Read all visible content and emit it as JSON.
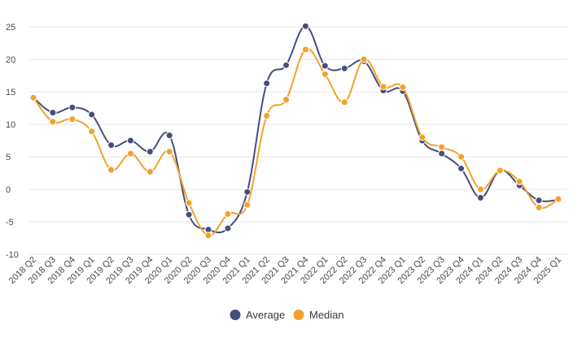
{
  "chart_data": {
    "type": "line",
    "categories": [
      "2018 Q2",
      "2018 Q3",
      "2018 Q4",
      "2019 Q1",
      "2019 Q2",
      "2019 Q3",
      "2019 Q4",
      "2020 Q1",
      "2020 Q2",
      "2020 Q3",
      "2020 Q4",
      "2021 Q1",
      "2021 Q2",
      "2021 Q3",
      "2021 Q4",
      "2022 Q1",
      "2022 Q2",
      "2022 Q3",
      "2022 Q4",
      "2023 Q1",
      "2023 Q2",
      "2023 Q3",
      "2023 Q4",
      "2024 Q1",
      "2024 Q2",
      "2024 Q3",
      "2024 Q4",
      "2025 Q1"
    ],
    "series": [
      {
        "name": "Average",
        "color": "#454e7e",
        "values": [
          14.1,
          11.8,
          12.6,
          11.5,
          6.8,
          7.5,
          5.8,
          8.3,
          -3.9,
          -6.2,
          -6.0,
          -0.4,
          16.3,
          19.1,
          25.1,
          19.0,
          18.6,
          19.7,
          15.2,
          15.1,
          7.5,
          5.5,
          3.2,
          -1.3,
          2.9,
          0.6,
          -1.7,
          -1.6
        ]
      },
      {
        "name": "Median",
        "color": "#f2a22a",
        "values": [
          14.1,
          10.4,
          10.8,
          8.9,
          3.0,
          5.5,
          2.7,
          5.8,
          -2.1,
          -7.1,
          -3.8,
          -2.4,
          11.3,
          13.8,
          21.5,
          17.7,
          13.4,
          20.0,
          15.8,
          15.7,
          8.0,
          6.5,
          5.0,
          0.0,
          2.9,
          1.2,
          -2.8,
          -1.5
        ]
      }
    ],
    "yticks": [
      25,
      20,
      15,
      10,
      5,
      0,
      -5,
      -10
    ],
    "ylim": [
      -10,
      25
    ],
    "grid": true,
    "legend_position": "bottom-center"
  }
}
